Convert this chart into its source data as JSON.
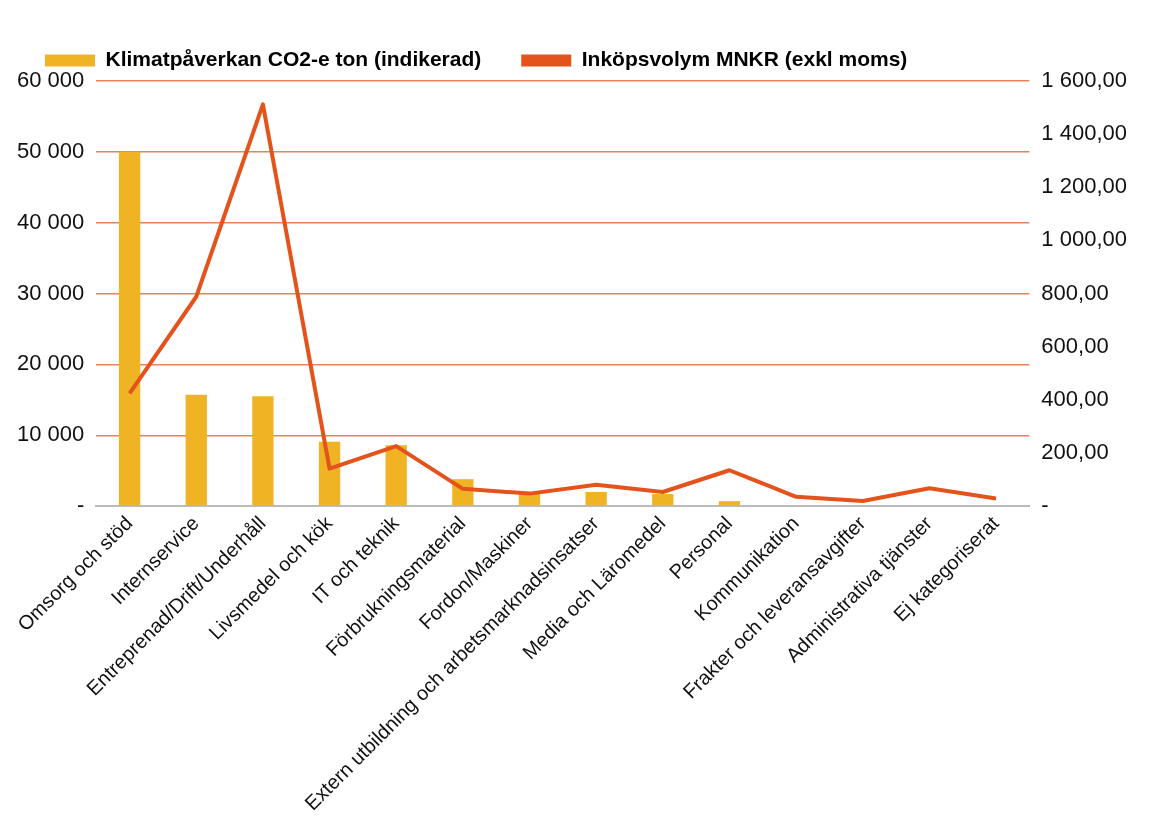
{
  "chart_data": {
    "type": "bar",
    "categories": [
      "Omsorg och stöd",
      "Internservice",
      "Entreprenad/Drift/Underhåll",
      "Livsmedel och kök",
      "IT och teknik",
      "Förbrukningsmaterial",
      "Fordon/Maskiner",
      "Extern utbildning och arbetsmarknadsinsatser",
      "Media och Läromedel",
      "Personal",
      "Kommunikation",
      "Frakter och leveransavgifter",
      "Administrativa tjänster",
      "Ej kategoriserat"
    ],
    "series": [
      {
        "name": "Klimatpåverkan CO2-e ton (indikerad)",
        "color": "#f0b323",
        "values": [
          50000,
          15700,
          15500,
          9100,
          8600,
          3800,
          2000,
          2000,
          1700,
          700,
          null,
          null,
          null,
          null
        ]
      },
      {
        "name": "Inköpsvolym MNKR (exkl moms)",
        "type": "line",
        "axis": "y2",
        "color": "#e4531b",
        "values": [
          424,
          788,
          1512,
          141,
          226,
          65,
          47,
          80,
          53,
          135,
          35,
          19,
          67,
          29
        ]
      }
    ],
    "ylim": [
      0,
      60000
    ],
    "yticks": [
      {
        "value": 0,
        "label": "-"
      },
      {
        "value": 10000,
        "label": "10 000"
      },
      {
        "value": 20000,
        "label": "20 000"
      },
      {
        "value": 30000,
        "label": "30 000"
      },
      {
        "value": 40000,
        "label": "40 000"
      },
      {
        "value": 50000,
        "label": "50 000"
      },
      {
        "value": 60000,
        "label": "60 000"
      }
    ],
    "y2lim": [
      0,
      1600
    ],
    "y2ticks": [
      {
        "value": 0,
        "label": "-"
      },
      {
        "value": 200,
        "label": "200,00"
      },
      {
        "value": 400,
        "label": "400,00"
      },
      {
        "value": 600,
        "label": "600,00"
      },
      {
        "value": 800,
        "label": "800,00"
      },
      {
        "value": 1000,
        "label": "1 000,00"
      },
      {
        "value": 1200,
        "label": "1 200,00"
      },
      {
        "value": 1400,
        "label": "1 400,00"
      },
      {
        "value": 1600,
        "label": "1 600,00"
      }
    ],
    "grid": "y",
    "legend": "top left",
    "marker": "none",
    "line_style": "solid"
  }
}
